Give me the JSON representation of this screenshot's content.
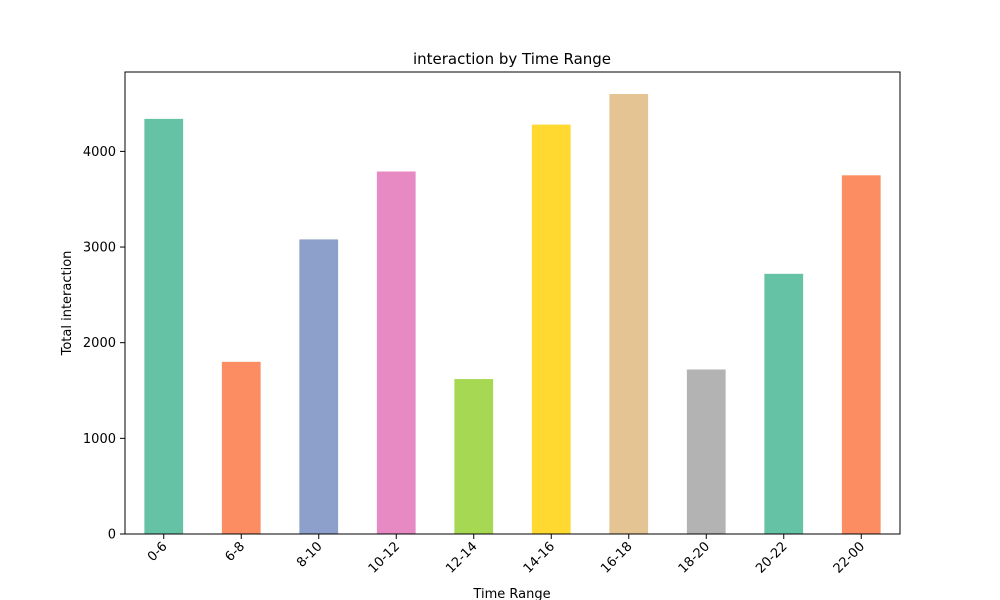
{
  "chart_data": {
    "type": "bar",
    "title": "interaction by Time Range",
    "xlabel": "Time Range",
    "ylabel": "Total interaction",
    "categories": [
      "0-6",
      "6-8",
      "8-10",
      "10-12",
      "12-14",
      "14-16",
      "16-18",
      "18-20",
      "20-22",
      "22-00"
    ],
    "values": [
      4340,
      1800,
      3080,
      3790,
      1620,
      4280,
      4600,
      1720,
      2720,
      3750
    ],
    "colors": [
      "#66c2a5",
      "#fc8d62",
      "#8da0cb",
      "#e78ac3",
      "#a6d854",
      "#ffd92f",
      "#e5c494",
      "#b3b3b3",
      "#66c2a5",
      "#fc8d62"
    ],
    "ylim": [
      0,
      4830
    ],
    "yticks": [
      0,
      1000,
      2000,
      3000,
      4000
    ],
    "grid": false,
    "legend": false
  }
}
